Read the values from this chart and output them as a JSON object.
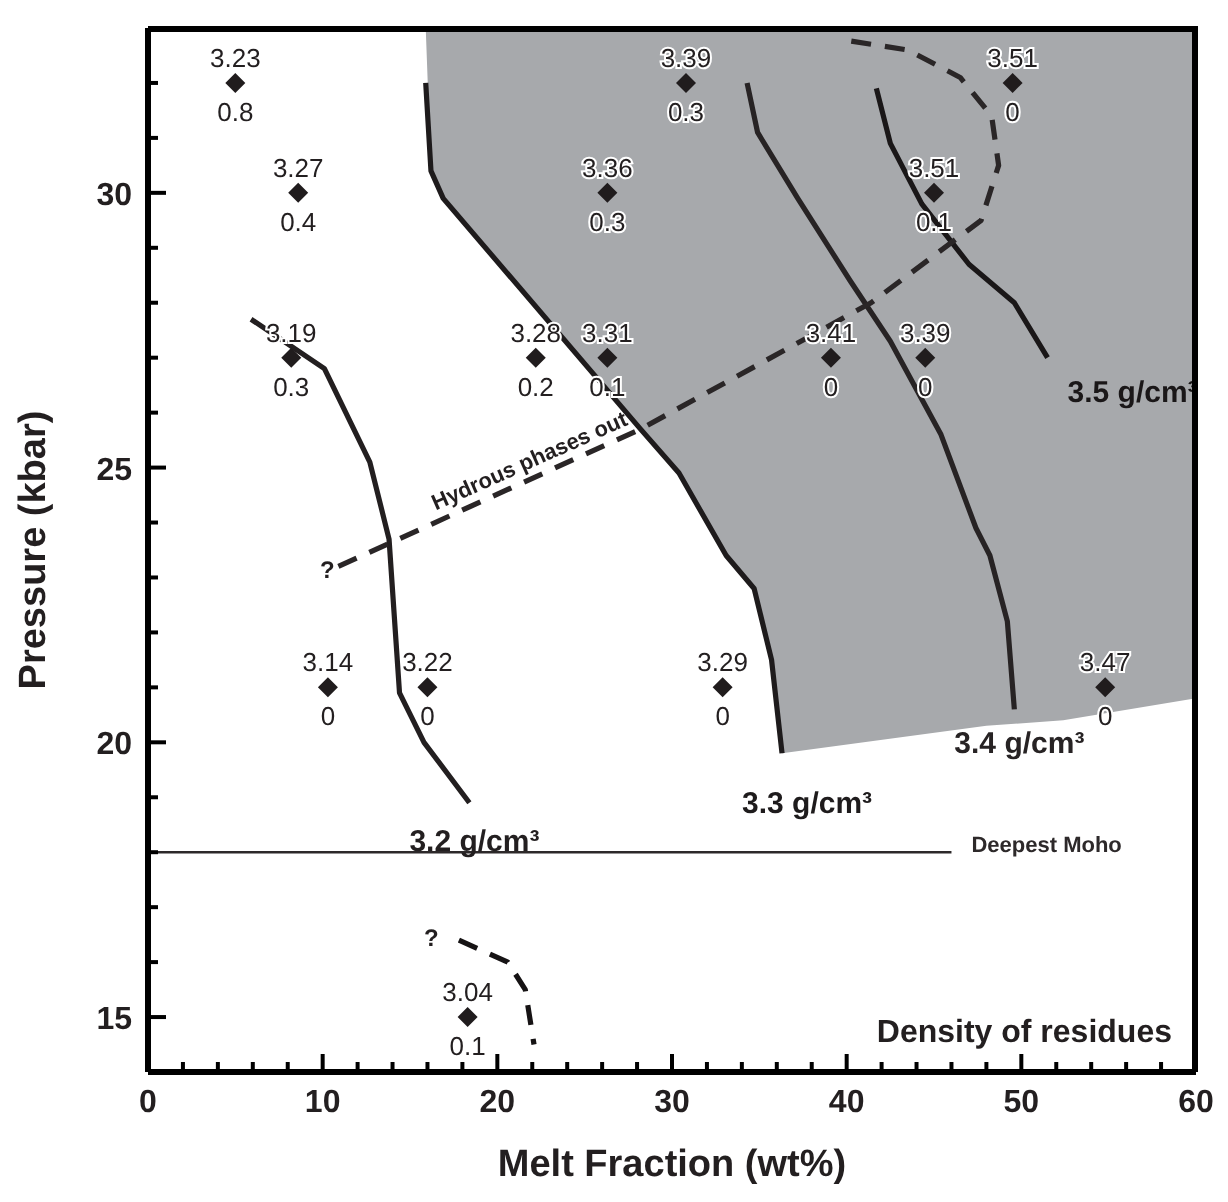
{
  "chart_data": {
    "type": "line",
    "xlabel": "Melt Fraction (wt%)",
    "ylabel": "Pressure (kbar)",
    "xlim": [
      0,
      60
    ],
    "ylim": [
      14,
      33
    ],
    "xticks": [
      0,
      {
        "value": 2,
        "label": null
      },
      {
        "value": 4,
        "label": null
      },
      {
        "value": 6,
        "label": null
      },
      {
        "value": 8,
        "label": null
      },
      10,
      {
        "value": 12,
        "label": null
      },
      {
        "value": 14,
        "label": null
      },
      {
        "value": 16,
        "label": null
      },
      {
        "value": 18,
        "label": null
      },
      20,
      {
        "value": 22,
        "label": null
      },
      {
        "value": 24,
        "label": null
      },
      {
        "value": 26,
        "label": null
      },
      {
        "value": 28,
        "label": null
      },
      30,
      {
        "value": 32,
        "label": null
      },
      {
        "value": 34,
        "label": null
      },
      {
        "value": 36,
        "label": null
      },
      {
        "value": 38,
        "label": null
      },
      40,
      {
        "value": 42,
        "label": null
      },
      {
        "value": 44,
        "label": null
      },
      {
        "value": 46,
        "label": null
      },
      {
        "value": 48,
        "label": null
      },
      50,
      {
        "value": 52,
        "label": null
      },
      {
        "value": 54,
        "label": null
      },
      {
        "value": 56,
        "label": null
      },
      {
        "value": 58,
        "label": null
      },
      60
    ],
    "yticks": [
      {
        "value": 14,
        "label": null
      },
      15,
      {
        "value": 16,
        "label": null
      },
      {
        "value": 17,
        "label": null
      },
      {
        "value": 18,
        "label": null
      },
      {
        "value": 19,
        "label": null
      },
      20,
      {
        "value": 21,
        "label": null
      },
      {
        "value": 22,
        "label": null
      },
      {
        "value": 23,
        "label": null
      },
      {
        "value": 24,
        "label": null
      },
      25,
      {
        "value": 26,
        "label": null
      },
      {
        "value": 27,
        "label": null
      },
      {
        "value": 28,
        "label": null
      },
      {
        "value": 29,
        "label": null
      },
      30,
      {
        "value": 31,
        "label": null
      },
      {
        "value": 32,
        "label": null
      },
      {
        "value": 33,
        "label": null
      }
    ],
    "grid": false,
    "legend": false,
    "annotations": [
      {
        "text": "Hydrous phases out",
        "x": 22,
        "y": 25
      },
      "?",
      "?",
      "Density of residues"
    ],
    "series": [
      {
        "name": "3.2 g/cm³",
        "color": "#231f20",
        "x": [
          5.9,
          10.1,
          12.7,
          13.8,
          14.4,
          15.8,
          18.4
        ],
        "values": [
          27.7,
          26.8,
          25.1,
          23.7,
          20.9,
          20,
          18.9
        ]
      },
      {
        "name": "3.3 g/cm³",
        "color": "#1e1b1c",
        "x": [
          15.9,
          16.2,
          16.9,
          28.2,
          30.4,
          33.1,
          34.7,
          35.7,
          36.3,
          48,
          52.4,
          60
        ],
        "values": [
          32,
          30.4,
          29.9,
          25.7,
          24.9,
          23.4,
          22.8,
          21.5,
          19.8,
          null,
          null,
          null
        ],
        "lower": [
          33,
          30.4,
          29.9,
          25.7,
          24.9,
          23.4,
          22.8,
          21.5,
          19.8,
          20.3,
          20.4,
          20.8
        ],
        "upper": [
          33,
          33,
          33,
          33,
          33,
          33,
          33,
          33,
          33,
          33,
          33,
          33
        ]
      },
      {
        "name": "3.4 g/cm³",
        "color": "#272324",
        "x": [
          34.3,
          34.9,
          37.2,
          40.2,
          42.5,
          45.4,
          47.4,
          48.2,
          49.2,
          49.6
        ],
        "values": [
          32,
          31.1,
          29.9,
          28.4,
          27.3,
          25.6,
          23.9,
          23.4,
          22.2,
          20.6
        ]
      },
      {
        "name": "3.5 g/cm³",
        "color": "#1a1718",
        "x": [
          41.7,
          42.5,
          44.3,
          47,
          49.6,
          51.5
        ],
        "values": [
          31.9,
          30.9,
          29.8,
          28.7,
          28,
          27
        ]
      },
      {
        "line_style": "dashed",
        "color": "#2a2627",
        "x": [
          10.9,
          28.2,
          41.4,
          47.7,
          48.7,
          48.3,
          46.5,
          43.5,
          39.5
        ],
        "values": [
          23.2,
          25.7,
          28,
          29.5,
          30.5,
          31.4,
          32.1,
          32.6,
          32.8
        ]
      },
      {
        "line_style": "dashed",
        "color": "#161314",
        "x": [
          17.8,
          20.6,
          21.6,
          22.1
        ],
        "values": [
          16.4,
          16,
          15.5,
          14.5
        ]
      },
      {
        "name": "Deepest Moho",
        "color": "#2d292a",
        "x": [
          0,
          46
        ],
        "values": [
          18,
          18
        ]
      },
      {
        "type": "scatter",
        "color": "#201c1d",
        "marker": "diamond",
        "x": [
          5,
          8.6,
          8.2,
          22.2,
          26.3,
          26.3,
          30.8,
          49.5,
          45,
          39.1,
          44.5,
          10.3,
          16,
          32.9,
          54.8,
          18.3
        ],
        "values": [
          32,
          30,
          27,
          27,
          27,
          30,
          32,
          32,
          30,
          27,
          27,
          21,
          21,
          21,
          21,
          15
        ],
        "value_labels": [
          "3.23\n0.8",
          "3.27\n0.4",
          "3.19\n0.3",
          "3.28\n0.2",
          "3.31\n0.1",
          "3.36\n0.3",
          "3.39\n0.3",
          "3.51\n0",
          "3.51\n0.1",
          "3.41\n0",
          "3.39\n0",
          "3.14\n0",
          "3.22\n0",
          "3.29\n0",
          "3.47\n0",
          "3.04\n0.1"
        ]
      }
    ]
  }
}
